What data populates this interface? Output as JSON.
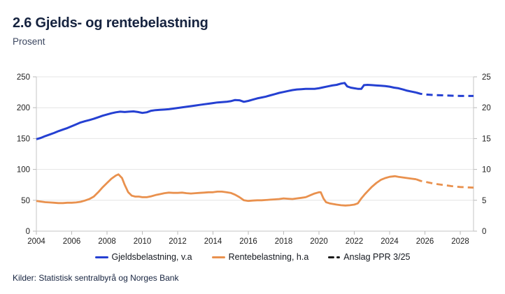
{
  "header": {
    "title": "2.6 Gjelds- og rentebelastning",
    "subtitle": "Prosent"
  },
  "footer": {
    "sources": "Kilder: Statistisk sentralbyrå og Norges Bank"
  },
  "colors": {
    "debt_line": "#2540d2",
    "interest_line": "#e9914e",
    "forecast_legend": "#1a1a1a",
    "gridline": "#e4e4e4",
    "axis": "#c6c6c6",
    "tick": "#b9b9b9"
  },
  "legend": [
    {
      "label": "Gjeldsbelastning, v.a",
      "color": "#2540d2",
      "style": "solid"
    },
    {
      "label": "Rentebelastning, h.a",
      "color": "#e9914e",
      "style": "solid"
    },
    {
      "label": "Anslag PPR 3/25",
      "color": "#1a1a1a",
      "style": "dashed"
    }
  ],
  "chart_data": {
    "type": "line",
    "title": "2.6 Gjelds- og rentebelastning",
    "subtitle": "Prosent",
    "grid": true,
    "legend_position": "bottom",
    "x_ticks": [
      2004,
      2006,
      2008,
      2010,
      2012,
      2014,
      2016,
      2018,
      2020,
      2022,
      2024,
      2026,
      2028
    ],
    "x_range": [
      2004,
      2028.75
    ],
    "y_left": {
      "min": 0,
      "max": 250,
      "ticks": [
        0,
        50,
        100,
        150,
        200,
        250
      ]
    },
    "y_right": {
      "min": 0,
      "max": 25,
      "ticks": [
        0,
        5,
        10,
        15,
        20,
        25
      ]
    },
    "series": [
      {
        "name": "Gjeldsbelastning, v.a",
        "data_name": "gjeldsbelastning-line",
        "axis": "left",
        "color": "#2540d2",
        "width": 3,
        "dashed": false,
        "points": [
          [
            2004,
            149
          ],
          [
            2004.25,
            151
          ],
          [
            2004.5,
            154
          ],
          [
            2004.75,
            156.5
          ],
          [
            2005,
            159
          ],
          [
            2005.25,
            162
          ],
          [
            2005.5,
            164.5
          ],
          [
            2005.75,
            167
          ],
          [
            2006,
            170
          ],
          [
            2006.25,
            173
          ],
          [
            2006.5,
            176
          ],
          [
            2006.75,
            178
          ],
          [
            2007,
            180
          ],
          [
            2007.25,
            182
          ],
          [
            2007.5,
            184.5
          ],
          [
            2007.75,
            187
          ],
          [
            2008,
            189
          ],
          [
            2008.25,
            191
          ],
          [
            2008.5,
            192.5
          ],
          [
            2008.75,
            193.5
          ],
          [
            2009,
            193
          ],
          [
            2009.25,
            193.5
          ],
          [
            2009.5,
            194
          ],
          [
            2009.75,
            193
          ],
          [
            2010,
            191.5
          ],
          [
            2010.25,
            192.5
          ],
          [
            2010.5,
            195
          ],
          [
            2010.75,
            196
          ],
          [
            2011,
            196.5
          ],
          [
            2011.25,
            197
          ],
          [
            2011.5,
            197.5
          ],
          [
            2011.75,
            198.5
          ],
          [
            2012,
            199.5
          ],
          [
            2012.25,
            200.5
          ],
          [
            2012.5,
            201.5
          ],
          [
            2012.75,
            202.5
          ],
          [
            2013,
            203.5
          ],
          [
            2013.25,
            204.5
          ],
          [
            2013.5,
            205.5
          ],
          [
            2013.75,
            206.5
          ],
          [
            2014,
            207.5
          ],
          [
            2014.25,
            208.5
          ],
          [
            2014.5,
            209
          ],
          [
            2014.75,
            209.5
          ],
          [
            2015,
            210.5
          ],
          [
            2015.25,
            212.5
          ],
          [
            2015.5,
            212
          ],
          [
            2015.75,
            209.5
          ],
          [
            2016,
            211
          ],
          [
            2016.25,
            213
          ],
          [
            2016.5,
            215
          ],
          [
            2016.75,
            216.5
          ],
          [
            2017,
            218
          ],
          [
            2017.25,
            220
          ],
          [
            2017.5,
            222
          ],
          [
            2017.75,
            224
          ],
          [
            2018,
            225.5
          ],
          [
            2018.25,
            227
          ],
          [
            2018.5,
            228.5
          ],
          [
            2018.75,
            229.5
          ],
          [
            2019,
            230
          ],
          [
            2019.25,
            230.5
          ],
          [
            2019.5,
            230.5
          ],
          [
            2019.75,
            230.5
          ],
          [
            2020,
            231.5
          ],
          [
            2020.25,
            233
          ],
          [
            2020.5,
            234.5
          ],
          [
            2020.75,
            236
          ],
          [
            2021,
            237
          ],
          [
            2021.25,
            239
          ],
          [
            2021.45,
            240
          ],
          [
            2021.6,
            234.5
          ],
          [
            2021.8,
            232.5
          ],
          [
            2022,
            231.5
          ],
          [
            2022.2,
            230.5
          ],
          [
            2022.4,
            230.5
          ],
          [
            2022.55,
            236.5
          ],
          [
            2022.75,
            237
          ],
          [
            2023,
            236.5
          ],
          [
            2023.25,
            236
          ],
          [
            2023.5,
            235.5
          ],
          [
            2023.75,
            235
          ],
          [
            2024,
            234
          ],
          [
            2024.25,
            232.5
          ],
          [
            2024.5,
            231.5
          ],
          [
            2024.75,
            229.5
          ],
          [
            2025,
            227.5
          ],
          [
            2025.25,
            226
          ],
          [
            2025.5,
            224.5
          ]
        ]
      },
      {
        "name": "Gjeldsbelastning, v.a (anslag PPR 3/25)",
        "data_name": "gjeldsbelastning-forecast-line",
        "axis": "left",
        "color": "#2540d2",
        "width": 3,
        "dashed": true,
        "points": [
          [
            2025.5,
            224.5
          ],
          [
            2025.75,
            222.5
          ],
          [
            2026,
            221.5
          ],
          [
            2026.5,
            220.5
          ],
          [
            2027,
            220
          ],
          [
            2027.5,
            219.5
          ],
          [
            2028,
            219
          ],
          [
            2028.75,
            219
          ]
        ]
      },
      {
        "name": "Rentebelastning, h.a",
        "data_name": "rentebelastning-line",
        "axis": "right",
        "color": "#e9914e",
        "width": 2.8,
        "dashed": false,
        "points": [
          [
            2004,
            4.9
          ],
          [
            2004.25,
            4.8
          ],
          [
            2004.5,
            4.7
          ],
          [
            2004.75,
            4.65
          ],
          [
            2005,
            4.6
          ],
          [
            2005.25,
            4.55
          ],
          [
            2005.5,
            4.55
          ],
          [
            2005.75,
            4.6
          ],
          [
            2006,
            4.6
          ],
          [
            2006.25,
            4.65
          ],
          [
            2006.5,
            4.75
          ],
          [
            2006.75,
            4.95
          ],
          [
            2007,
            5.2
          ],
          [
            2007.25,
            5.6
          ],
          [
            2007.5,
            6.3
          ],
          [
            2007.75,
            7.1
          ],
          [
            2008,
            7.8
          ],
          [
            2008.25,
            8.5
          ],
          [
            2008.5,
            9.0
          ],
          [
            2008.65,
            9.2
          ],
          [
            2008.85,
            8.6
          ],
          [
            2009,
            7.5
          ],
          [
            2009.2,
            6.3
          ],
          [
            2009.4,
            5.75
          ],
          [
            2009.6,
            5.6
          ],
          [
            2009.8,
            5.6
          ],
          [
            2010,
            5.5
          ],
          [
            2010.25,
            5.5
          ],
          [
            2010.5,
            5.65
          ],
          [
            2010.75,
            5.85
          ],
          [
            2011,
            6.0
          ],
          [
            2011.25,
            6.15
          ],
          [
            2011.5,
            6.25
          ],
          [
            2011.75,
            6.2
          ],
          [
            2012,
            6.2
          ],
          [
            2012.25,
            6.25
          ],
          [
            2012.5,
            6.15
          ],
          [
            2012.75,
            6.1
          ],
          [
            2013,
            6.15
          ],
          [
            2013.25,
            6.2
          ],
          [
            2013.5,
            6.25
          ],
          [
            2013.75,
            6.3
          ],
          [
            2014,
            6.3
          ],
          [
            2014.25,
            6.4
          ],
          [
            2014.5,
            6.4
          ],
          [
            2014.75,
            6.3
          ],
          [
            2015,
            6.2
          ],
          [
            2015.25,
            5.9
          ],
          [
            2015.5,
            5.5
          ],
          [
            2015.75,
            5.0
          ],
          [
            2016,
            4.9
          ],
          [
            2016.25,
            4.95
          ],
          [
            2016.5,
            5.0
          ],
          [
            2016.75,
            5.0
          ],
          [
            2017,
            5.05
          ],
          [
            2017.25,
            5.1
          ],
          [
            2017.5,
            5.15
          ],
          [
            2017.75,
            5.2
          ],
          [
            2018,
            5.3
          ],
          [
            2018.25,
            5.25
          ],
          [
            2018.5,
            5.2
          ],
          [
            2018.75,
            5.3
          ],
          [
            2019,
            5.4
          ],
          [
            2019.25,
            5.5
          ],
          [
            2019.5,
            5.8
          ],
          [
            2019.75,
            6.1
          ],
          [
            2020,
            6.3
          ],
          [
            2020.1,
            6.3
          ],
          [
            2020.25,
            5.3
          ],
          [
            2020.4,
            4.7
          ],
          [
            2020.6,
            4.5
          ],
          [
            2020.8,
            4.4
          ],
          [
            2021,
            4.3
          ],
          [
            2021.25,
            4.2
          ],
          [
            2021.5,
            4.15
          ],
          [
            2021.75,
            4.2
          ],
          [
            2022,
            4.3
          ],
          [
            2022.2,
            4.5
          ],
          [
            2022.4,
            5.3
          ],
          [
            2022.6,
            6.0
          ],
          [
            2022.8,
            6.6
          ],
          [
            2023,
            7.2
          ],
          [
            2023.25,
            7.8
          ],
          [
            2023.5,
            8.3
          ],
          [
            2023.75,
            8.6
          ],
          [
            2024,
            8.8
          ],
          [
            2024.3,
            8.9
          ],
          [
            2024.5,
            8.8
          ],
          [
            2024.75,
            8.7
          ],
          [
            2025,
            8.6
          ],
          [
            2025.25,
            8.5
          ],
          [
            2025.5,
            8.4
          ]
        ]
      },
      {
        "name": "Rentebelastning, h.a (anslag PPR 3/25)",
        "data_name": "rentebelastning-forecast-line",
        "axis": "right",
        "color": "#e9914e",
        "width": 2.8,
        "dashed": true,
        "points": [
          [
            2025.5,
            8.4
          ],
          [
            2025.75,
            8.15
          ],
          [
            2026,
            8.0
          ],
          [
            2026.5,
            7.7
          ],
          [
            2027,
            7.5
          ],
          [
            2027.5,
            7.3
          ],
          [
            2028,
            7.15
          ],
          [
            2028.75,
            7.05
          ]
        ]
      }
    ]
  }
}
